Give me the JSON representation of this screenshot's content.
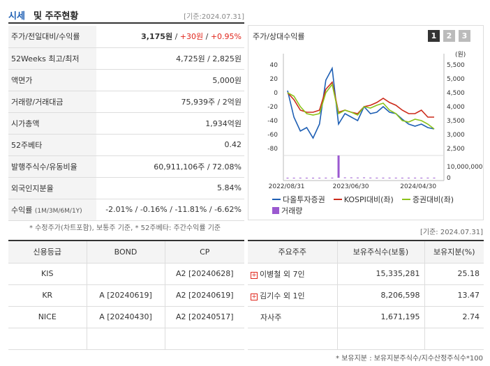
{
  "header": {
    "title_a": "시세",
    "title_b": "및 주주현황",
    "date": "[기준:2024.07.31]"
  },
  "info": [
    {
      "label": "주가/전일대비/수익률",
      "price": "3,175원",
      "sep1": " / ",
      "change": "+30원",
      "sep2": " / ",
      "rate": "+0.95%"
    },
    {
      "label": "52Weeks 최고/최저",
      "value": "4,725원 / 2,825원"
    },
    {
      "label": "액면가",
      "value": "5,000원"
    },
    {
      "label": "거래량/거래대금",
      "value": "75,939주 / 2억원"
    },
    {
      "label": "시가총액",
      "value": "1,934억원"
    },
    {
      "label": "52주베타",
      "value": "0.42"
    },
    {
      "label": "발행주식수/유동비율",
      "value": "60,911,106주 / 72.08%"
    },
    {
      "label": "외국인지분율",
      "value": "5.84%"
    },
    {
      "label": "수익률",
      "label_small": "(1M/3M/6M/1Y)",
      "r1": "-2.01%",
      "r2": "-0.16%",
      "r3": "-11.81%",
      "r4": "-6.62%",
      "sep": " / "
    }
  ],
  "footnote1": "* 수정주가(차트포함), 보통주 기준, * 52주베타: 주간수익률 기준",
  "chart_header": {
    "title": "주가/상대수익률",
    "tabs": [
      "1",
      "2",
      "3"
    ]
  },
  "chart_data": {
    "type": "line",
    "x_ticks": [
      "2022/08/31",
      "2023/06/30",
      "2024/04/30"
    ],
    "left_axis": {
      "ticks": [
        "40",
        "20",
        "0",
        "-20",
        "-40",
        "-60",
        "-80"
      ],
      "ylim": [
        -80,
        40
      ]
    },
    "right_axis": {
      "unit": "(원)",
      "ticks": [
        "5,500",
        "5,000",
        "4,500",
        "4,000",
        "3,500",
        "3,000",
        "2,500"
      ],
      "ylim": [
        2500,
        5500
      ]
    },
    "volume_axis": {
      "ticks": [
        "10,000,000",
        "0"
      ],
      "ylim": [
        0,
        10000000
      ]
    },
    "series": [
      {
        "name": "다올투자증권",
        "color": "#1e5fb4",
        "values": [
          3,
          -35,
          -55,
          -50,
          -65,
          -45,
          18,
          35,
          -45,
          -30,
          -35,
          -40,
          -20,
          -30,
          -28,
          -20,
          -28,
          -30,
          -38,
          -45,
          -48,
          -45,
          -50,
          -52
        ]
      },
      {
        "name": "KOSPI대비(좌)",
        "color": "#cc2a1a",
        "values": [
          0,
          -10,
          -25,
          -28,
          -28,
          -25,
          5,
          15,
          -28,
          -25,
          -28,
          -30,
          -20,
          -18,
          -14,
          -8,
          -14,
          -18,
          -25,
          -30,
          -30,
          -25,
          -35,
          -35
        ]
      },
      {
        "name": "증권대비(좌)",
        "color": "#8bc21a",
        "values": [
          0,
          -5,
          -20,
          -30,
          -32,
          -30,
          0,
          12,
          -30,
          -25,
          -28,
          -32,
          -20,
          -22,
          -18,
          -15,
          -25,
          -30,
          -40,
          -42,
          -38,
          -40,
          -45,
          -52
        ]
      }
    ],
    "volume": {
      "name": "거래량",
      "color": "#9b59d0",
      "values": [
        0.05,
        0.05,
        0.08,
        0.06,
        0.05,
        0.06,
        0.1,
        0.1,
        0.25,
        0.3,
        0.3,
        0.2,
        0.3,
        0.15,
        0.1,
        0.1,
        0.12,
        0.1,
        0.08,
        0.1,
        0.1,
        0.08,
        0.1,
        0.1
      ],
      "spike_index": 8,
      "spike": 9.5
    }
  },
  "legend": [
    {
      "label": "다올투자증권",
      "color": "#1e5fb4"
    },
    {
      "label": "KOSPI대비(좌)",
      "color": "#cc2a1a"
    },
    {
      "label": "증권대비(좌)",
      "color": "#8bc21a"
    },
    {
      "label": "거래량",
      "color": "#9b59d0"
    }
  ],
  "date2": "[기준: 2024.07.31]",
  "credit": {
    "headers": [
      "신용등급",
      "BOND",
      "CP"
    ],
    "rows": [
      [
        "KIS",
        "",
        "A2 [20240628]"
      ],
      [
        "KR",
        "A [20240619]",
        "A2 [20240619]"
      ],
      [
        "NICE",
        "A [20240430]",
        "A2 [20240517]"
      ],
      [
        "",
        "",
        ""
      ]
    ]
  },
  "holders": {
    "headers": [
      "주요주주",
      "보유주식수(보통)",
      "보유지분(%)"
    ],
    "rows": [
      {
        "name": "이병철 외 7인",
        "shares": "15,335,281",
        "pct": "25.18",
        "expand": "+"
      },
      {
        "name": "김기수 외 1인",
        "shares": "8,206,598",
        "pct": "13.47",
        "expand": "+"
      },
      {
        "name": "자사주",
        "shares": "1,671,195",
        "pct": "2.74",
        "expand": ""
      },
      {
        "name": "",
        "shares": "",
        "pct": "",
        "expand": ""
      }
    ]
  },
  "footnote2": "* 보유지분 : 보유지분주식수/지수산정주식수*100"
}
